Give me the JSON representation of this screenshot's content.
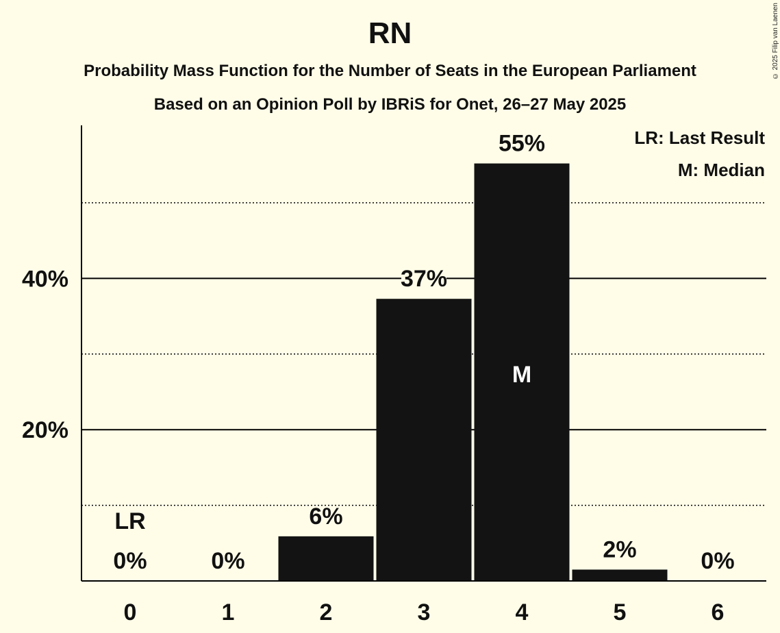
{
  "title": "RN",
  "subtitle": "Probability Mass Function for the Number of Seats in the European Parliament",
  "subtitle2": "Based on an Opinion Poll by IBRiS for Onet, 26–27 May 2025",
  "copyright": "© 2025 Filip van Laenen",
  "legend": {
    "last_result": "LR: Last Result",
    "median": "M: Median"
  },
  "colors": {
    "background": "#FFFDE8",
    "bar": "#131313",
    "text": "#111111"
  },
  "chart_data": {
    "type": "bar",
    "title": "RN",
    "xlabel": "",
    "ylabel": "",
    "categories": [
      "0",
      "1",
      "2",
      "3",
      "4",
      "5",
      "6"
    ],
    "values": [
      0,
      0,
      6,
      37,
      55,
      2,
      0
    ],
    "precise_values": [
      0,
      0,
      5.9,
      37.3,
      55.2,
      1.5,
      0
    ],
    "value_labels": [
      "0%",
      "0%",
      "6%",
      "37%",
      "55%",
      "2%",
      "0%"
    ],
    "ylim": [
      0,
      60
    ],
    "yticks": [
      20,
      40
    ],
    "ytick_labels": [
      "20%",
      "40%"
    ],
    "minor_gridlines": [
      10,
      30,
      50
    ],
    "last_result_index": 0,
    "last_result_label": "LR",
    "median_index": 4,
    "median_label": "M",
    "legend_position": "top-right"
  }
}
